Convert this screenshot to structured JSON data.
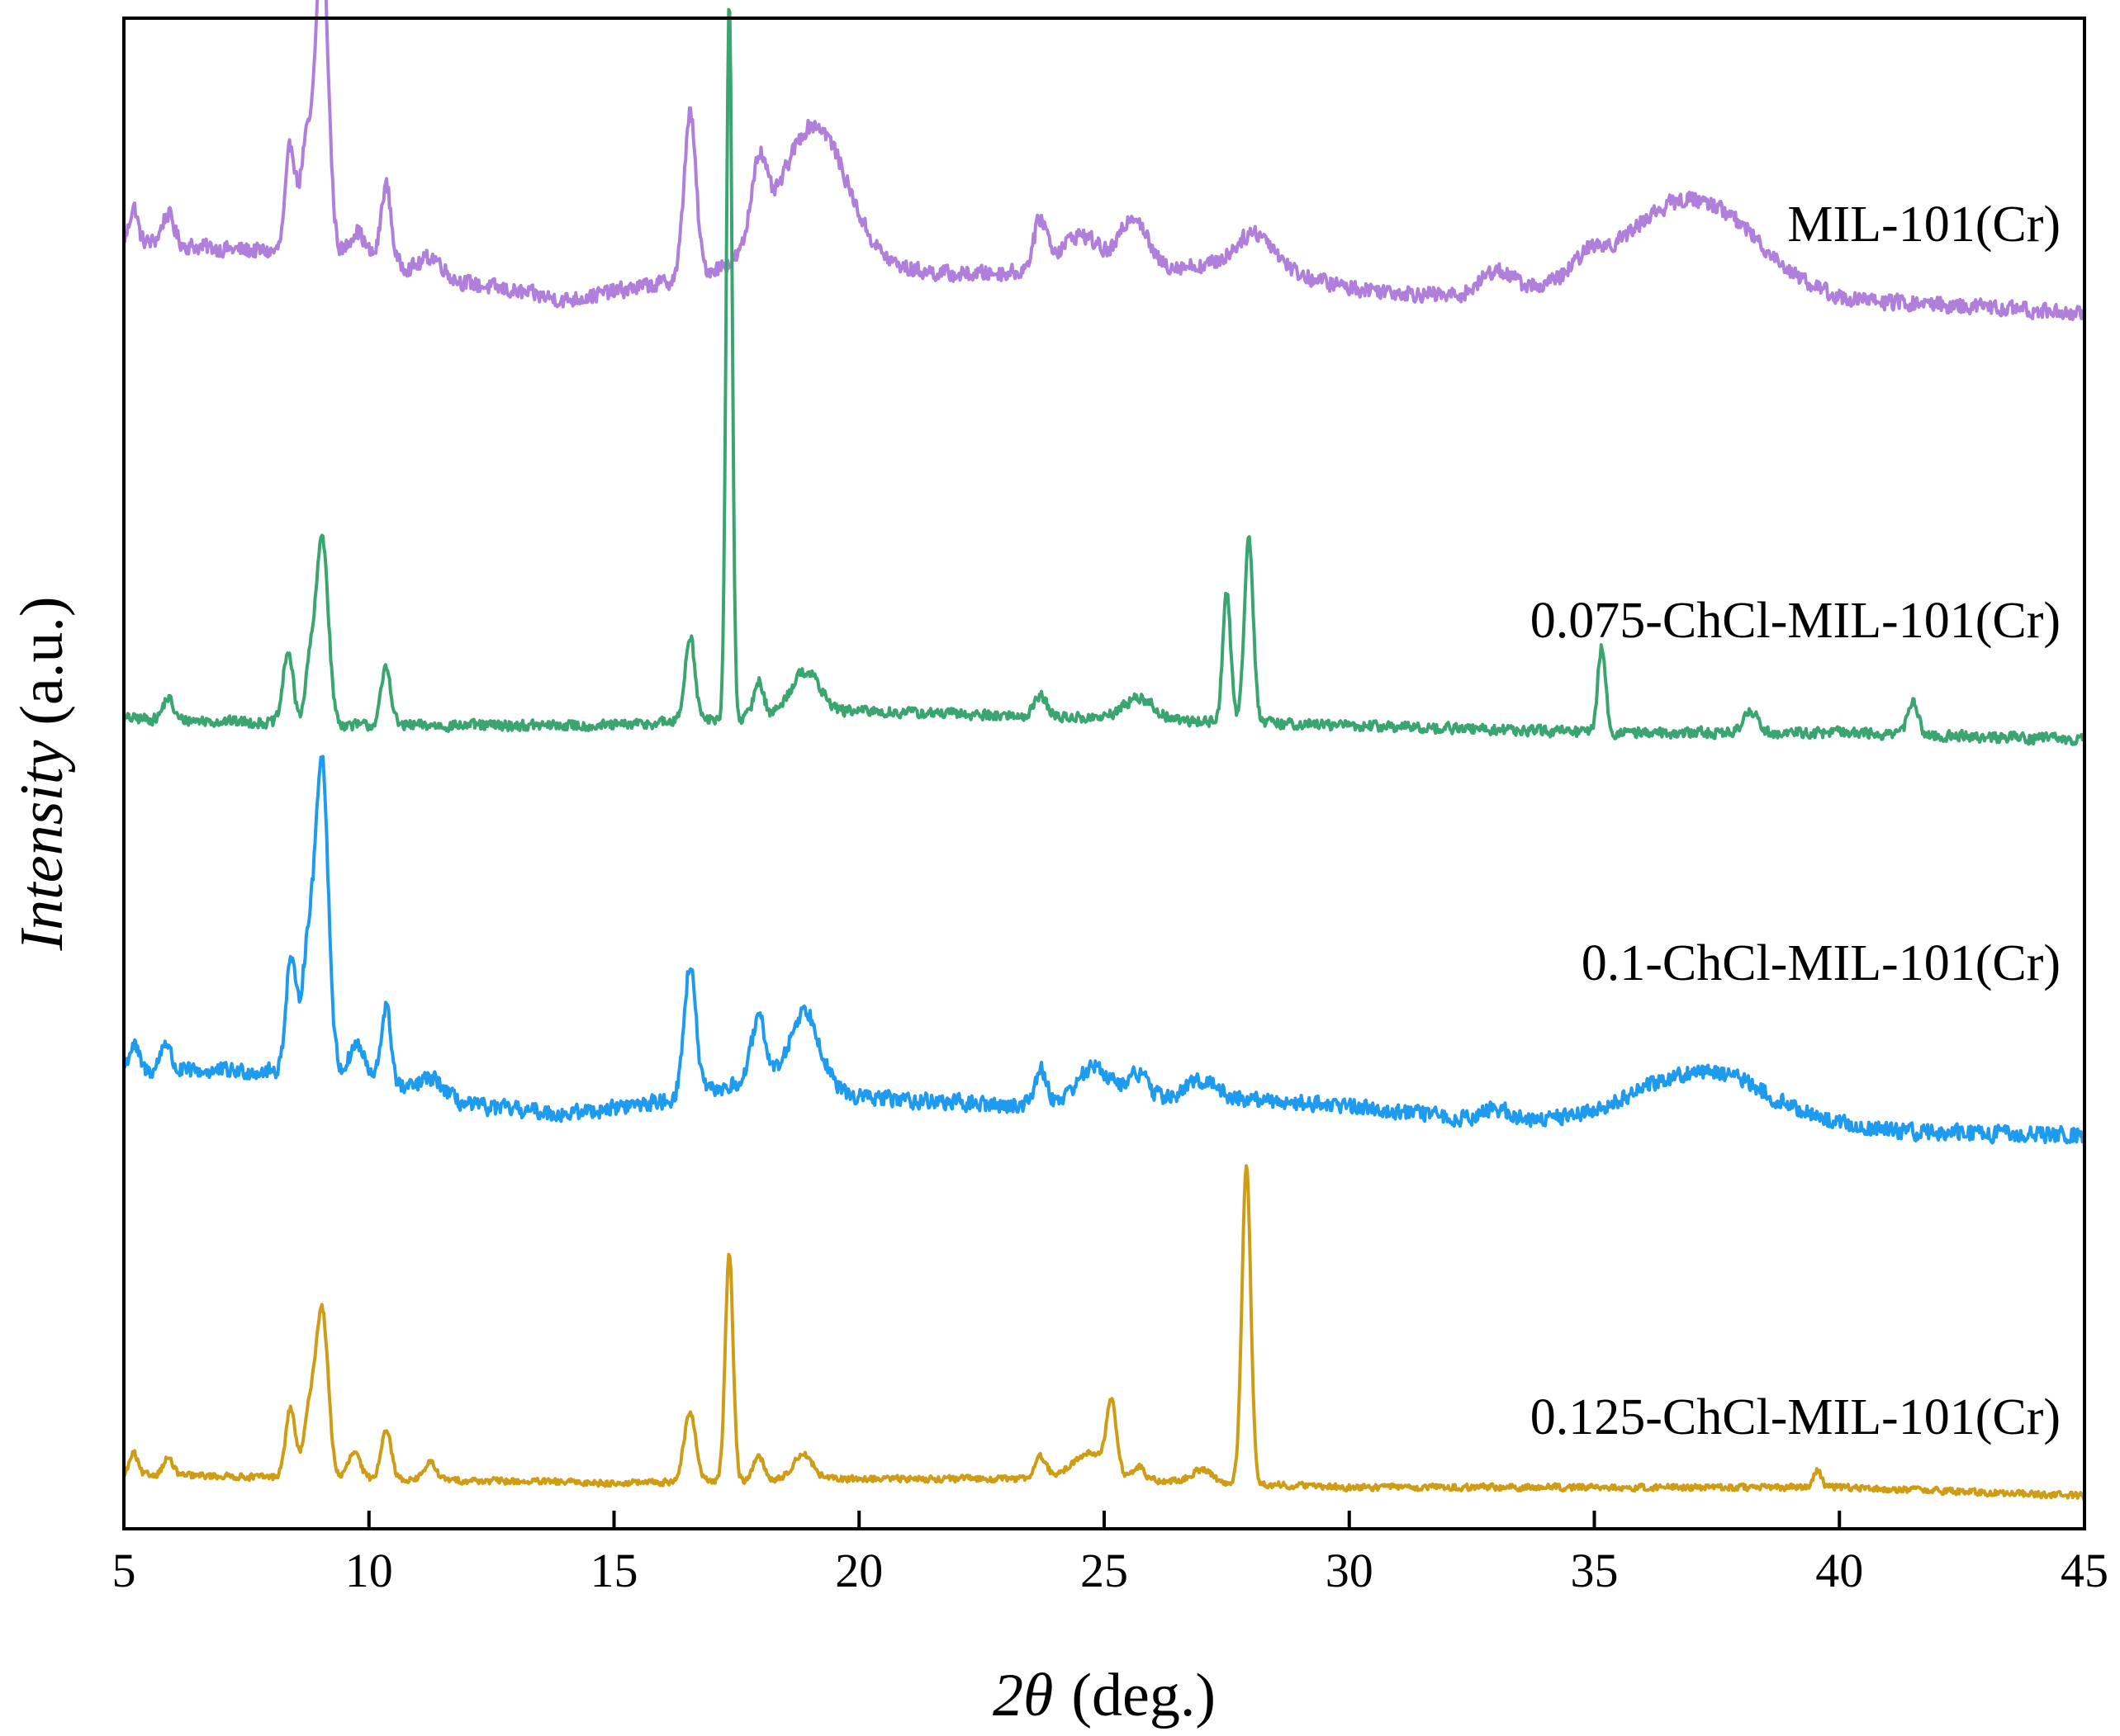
{
  "chart_data": {
    "type": "line",
    "title": "",
    "xlabel": "2θ (deg.)",
    "xlabel_parts": {
      "var": "2θ",
      "unit": "(deg.)"
    },
    "ylabel": "Intensity (a.u.)",
    "ylabel_parts": {
      "var": "Intensity",
      "unit": "(a.u.)"
    },
    "xlim": [
      5,
      45
    ],
    "x_ticks": [
      5,
      10,
      15,
      20,
      25,
      30,
      35,
      40,
      45
    ],
    "y_ticks_shown": false,
    "grid": false,
    "legend": "inline labels, right of each trace",
    "series": [
      {
        "name": "MIL-101(Cr)",
        "color": "#B07FDC",
        "baseline": [
          [
            5,
            0.2
          ],
          [
            7,
            0.18
          ],
          [
            10,
            0.16
          ],
          [
            12,
            0.1
          ],
          [
            14,
            0.06
          ],
          [
            16,
            0.1
          ],
          [
            18,
            0.16
          ],
          [
            22,
            0.12
          ],
          [
            26,
            0.14
          ],
          [
            28,
            0.14
          ],
          [
            30,
            0.09
          ],
          [
            32,
            0.07
          ],
          [
            34,
            0.09
          ],
          [
            36,
            0.12
          ],
          [
            38,
            0.11
          ],
          [
            40,
            0.06
          ],
          [
            42,
            0.05
          ],
          [
            45,
            0.03
          ]
        ],
        "peaks": [
          [
            5.2,
            0.08,
            0.08
          ],
          [
            5.9,
            0.07,
            0.12
          ],
          [
            8.4,
            0.24,
            0.1
          ],
          [
            8.7,
            0.15,
            0.1
          ],
          [
            9.05,
            0.6,
            0.12
          ],
          [
            8.9,
            0.18,
            0.2
          ],
          [
            9.75,
            0.06,
            0.15
          ],
          [
            10.35,
            0.18,
            0.1
          ],
          [
            11.3,
            0.04,
            0.2
          ],
          [
            16.55,
            0.38,
            0.12
          ],
          [
            17.95,
            0.18,
            0.15
          ],
          [
            19.1,
            0.32,
            0.65
          ],
          [
            23.7,
            0.11,
            0.14
          ],
          [
            24.5,
            0.08,
            0.4
          ],
          [
            25.6,
            0.12,
            0.25
          ],
          [
            28.1,
            0.08,
            0.4
          ],
          [
            33.0,
            0.05,
            0.3
          ],
          [
            34.9,
            0.04,
            0.3
          ],
          [
            37.0,
            0.18,
            1.2
          ]
        ],
        "noise": 0.02
      },
      {
        "name": "0.075-ChCl-MIL-101(Cr)",
        "color": "#3AA571",
        "baseline": [
          [
            5,
            0.04
          ],
          [
            10,
            0.03
          ],
          [
            15,
            0.03
          ],
          [
            20,
            0.05
          ],
          [
            25,
            0.04
          ],
          [
            30,
            0.03
          ],
          [
            35,
            0.02
          ],
          [
            40,
            0.02
          ],
          [
            45,
            0.01
          ]
        ],
        "peaks": [
          [
            5.9,
            0.03,
            0.1
          ],
          [
            8.35,
            0.1,
            0.1
          ],
          [
            8.8,
            0.08,
            0.1
          ],
          [
            9.05,
            0.26,
            0.12
          ],
          [
            10.35,
            0.08,
            0.1
          ],
          [
            16.55,
            0.12,
            0.1
          ],
          [
            17.35,
            1.0,
            0.06
          ],
          [
            17.95,
            0.05,
            0.1
          ],
          [
            18.9,
            0.06,
            0.3
          ],
          [
            23.7,
            0.03,
            0.12
          ],
          [
            25.7,
            0.03,
            0.3
          ],
          [
            27.5,
            0.18,
            0.08
          ],
          [
            27.95,
            0.26,
            0.09
          ],
          [
            35.15,
            0.12,
            0.08
          ],
          [
            38.2,
            0.03,
            0.15
          ],
          [
            41.5,
            0.05,
            0.1
          ]
        ],
        "noise": 0.008
      },
      {
        "name": "0.1-ChCl-MIL-101(Cr)",
        "color": "#1E9BEF",
        "baseline": [
          [
            5,
            0.12
          ],
          [
            8,
            0.12
          ],
          [
            10,
            0.1
          ],
          [
            12,
            0.04
          ],
          [
            14,
            0.02
          ],
          [
            16,
            0.05
          ],
          [
            18,
            0.1
          ],
          [
            20,
            0.06
          ],
          [
            23,
            0.04
          ],
          [
            27,
            0.06
          ],
          [
            30,
            0.04
          ],
          [
            33,
            0.0
          ],
          [
            36,
            0.02
          ],
          [
            38,
            0.02
          ],
          [
            41,
            -0.02
          ],
          [
            45,
            -0.03
          ]
        ],
        "peaks": [
          [
            5.2,
            0.06,
            0.1
          ],
          [
            5.85,
            0.07,
            0.1
          ],
          [
            8.4,
            0.25,
            0.1
          ],
          [
            8.75,
            0.16,
            0.12
          ],
          [
            9.05,
            0.58,
            0.12
          ],
          [
            8.9,
            0.2,
            0.22
          ],
          [
            9.75,
            0.08,
            0.15
          ],
          [
            10.35,
            0.18,
            0.1
          ],
          [
            11.3,
            0.04,
            0.25
          ],
          [
            16.55,
            0.3,
            0.12
          ],
          [
            17.95,
            0.14,
            0.15
          ],
          [
            18.9,
            0.18,
            0.3
          ],
          [
            23.7,
            0.08,
            0.12
          ],
          [
            24.8,
            0.08,
            0.35
          ],
          [
            25.7,
            0.06,
            0.2
          ],
          [
            27.0,
            0.04,
            0.3
          ],
          [
            33.0,
            0.03,
            0.3
          ],
          [
            37.2,
            0.1,
            1.2
          ]
        ],
        "noise": 0.02
      },
      {
        "name": "0.125-ChCl-MIL-101(Cr)",
        "color": "#CF9C16",
        "baseline": [
          [
            5,
            0.04
          ],
          [
            10,
            0.03
          ],
          [
            15,
            0.02
          ],
          [
            20,
            0.03
          ],
          [
            25,
            0.03
          ],
          [
            30,
            0.01
          ],
          [
            35,
            0.01
          ],
          [
            40,
            0.01
          ],
          [
            45,
            -0.01
          ]
        ],
        "peaks": [
          [
            5.2,
            0.05,
            0.08
          ],
          [
            5.9,
            0.04,
            0.1
          ],
          [
            8.4,
            0.16,
            0.1
          ],
          [
            8.8,
            0.16,
            0.12
          ],
          [
            9.05,
            0.38,
            0.12
          ],
          [
            9.7,
            0.06,
            0.12
          ],
          [
            10.35,
            0.12,
            0.1
          ],
          [
            11.25,
            0.04,
            0.12
          ],
          [
            16.55,
            0.16,
            0.12
          ],
          [
            17.35,
            0.53,
            0.08
          ],
          [
            17.95,
            0.06,
            0.1
          ],
          [
            18.85,
            0.06,
            0.2
          ],
          [
            23.7,
            0.05,
            0.12
          ],
          [
            24.7,
            0.06,
            0.35
          ],
          [
            25.15,
            0.16,
            0.1
          ],
          [
            25.7,
            0.03,
            0.12
          ],
          [
            27.0,
            0.03,
            0.2
          ],
          [
            27.9,
            0.74,
            0.09
          ],
          [
            39.55,
            0.04,
            0.08
          ]
        ],
        "noise": 0.008
      }
    ]
  }
}
